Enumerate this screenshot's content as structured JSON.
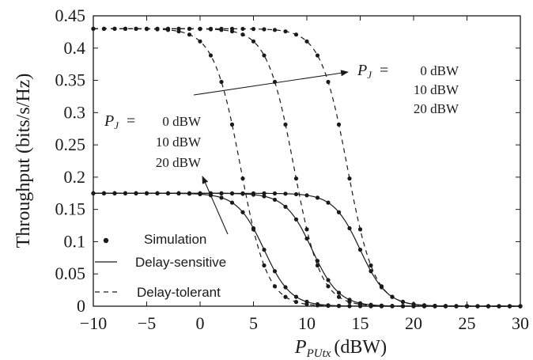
{
  "chart_data": {
    "type": "line",
    "xlabel_main": "P",
    "xlabel_sub": "PUtx",
    "xlabel_unit": "(dBW)",
    "ylabel": "Throughput (bits/s/Hz)",
    "xlim": [
      -10,
      30
    ],
    "ylim": [
      0,
      0.45
    ],
    "xticks": [
      -10,
      -5,
      0,
      5,
      10,
      15,
      20,
      25,
      30
    ],
    "xtick_labels": [
      "−10",
      "−5",
      "0",
      "5",
      "10",
      "15",
      "20",
      "25",
      "30"
    ],
    "yticks": [
      0,
      0.05,
      0.1,
      0.15,
      0.2,
      0.25,
      0.3,
      0.35,
      0.4,
      0.45
    ],
    "ytick_labels": [
      "0",
      "0.05",
      "0.1",
      "0.15",
      "0.2",
      "0.25",
      "0.3",
      "0.35",
      "0.4",
      "0.45"
    ],
    "grid": false,
    "legend_position": "bottom-left",
    "legend": [
      {
        "label": "Simulation",
        "style": "marker"
      },
      {
        "label": "Delay-sensitive",
        "style": "solid"
      },
      {
        "label": "Delay-tolerant",
        "style": "dashed"
      }
    ],
    "series": [
      {
        "group": "Delay-sensitive",
        "pj": "0 dBW",
        "style": "solid",
        "y_max": 0.175,
        "midpoint": 6.0,
        "slope": 0.8
      },
      {
        "group": "Delay-sensitive",
        "pj": "10 dBW",
        "style": "solid",
        "y_max": 0.175,
        "midpoint": 10.5,
        "slope": 0.8
      },
      {
        "group": "Delay-sensitive",
        "pj": "20 dBW",
        "style": "solid",
        "y_max": 0.175,
        "midpoint": 15.0,
        "slope": 0.8
      },
      {
        "group": "Delay-tolerant",
        "pj": "0 dBW",
        "style": "dashed",
        "y_max": 0.43,
        "midpoint": 3.8,
        "slope": 0.8
      },
      {
        "group": "Delay-tolerant",
        "pj": "10 dBW",
        "style": "dashed",
        "y_max": 0.43,
        "midpoint": 8.8,
        "slope": 0.8
      },
      {
        "group": "Delay-tolerant",
        "pj": "20 dBW",
        "style": "dashed",
        "y_max": 0.43,
        "midpoint": 13.8,
        "slope": 0.8
      }
    ],
    "annotations": [
      {
        "symbol": "P",
        "subscript": "J",
        "equals": "=",
        "values": [
          "0 dBW",
          "10 dBW",
          "20 dBW"
        ],
        "applies_to": "Delay-tolerant"
      },
      {
        "symbol": "P",
        "subscript": "J",
        "equals": "=",
        "values": [
          "0 dBW",
          "10 dBW",
          "20 dBW"
        ],
        "applies_to": "Delay-sensitive"
      }
    ]
  }
}
